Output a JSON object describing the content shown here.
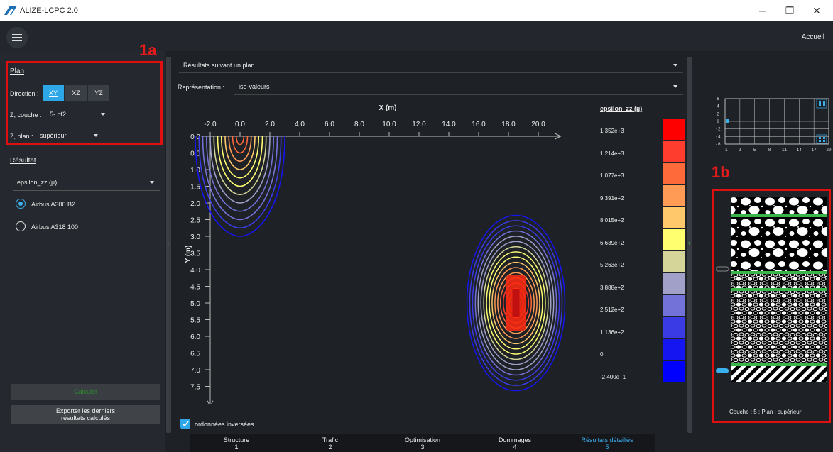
{
  "window": {
    "title": "ALIZE-LCPC 2.0",
    "minimize": "─",
    "restore": "❐",
    "close": "✕"
  },
  "appbar": {
    "home": "Accueil"
  },
  "annotations": {
    "a": "1a",
    "b": "1b"
  },
  "plan": {
    "heading": "Plan",
    "direction_label": "Direction :",
    "directions": [
      "XY",
      "XZ",
      "YZ"
    ],
    "active_direction": "XY",
    "zlayer_label": "Z, couche :",
    "zlayer_value": "5- pf2",
    "zplane_label": "Z, plan :",
    "zplane_value": "supérieur"
  },
  "result": {
    "heading": "Résultat",
    "quantity": "epsilon_zz (µ)",
    "loads": [
      "Airbus A300 B2",
      "Airbus A318 100"
    ],
    "selected_load": "Airbus A300 B2"
  },
  "buttons": {
    "calculate": "Calculer",
    "export_line1": "Exporter les derniers",
    "export_line2": "résultats calculés"
  },
  "center": {
    "mode": "Résultats suivant un plan",
    "representation_label": "Représentation :",
    "representation_value": "iso-valeurs",
    "inverted_label": "ordonnées inversées"
  },
  "chart_data": {
    "type": "heatmap",
    "title": "",
    "xlabel": "X (m)",
    "ylabel": "Y (m)",
    "xticks": [
      "-2.0",
      "0.0",
      "2.0",
      "4.0",
      "6.0",
      "8.0",
      "10.0",
      "12.0",
      "14.0",
      "16.0",
      "18.0",
      "20.0"
    ],
    "yticks": [
      "0.0",
      "0.5",
      "1.0",
      "1.5",
      "2.0",
      "2.5",
      "3.0",
      "3.5",
      "4.0",
      "4.5",
      "5.0",
      "5.5",
      "6.0",
      "6.5",
      "7.0",
      "7.5"
    ],
    "xlim": [
      -3,
      22
    ],
    "ylim": [
      0,
      7.5
    ],
    "y_inverted": true,
    "legend_title": "epsilon_zz (µ)",
    "legend_values": [
      "1.352e+3",
      "1.214e+3",
      "1.077e+3",
      "9.391e+2",
      "8.015e+2",
      "6.639e+2",
      "5.263e+2",
      "3.888e+2",
      "2.512e+2",
      "1.136e+2",
      "0",
      "-2.400e+1"
    ],
    "legend_colors": [
      "#ff0000",
      "#ff3d2e",
      "#ff6a3a",
      "#ff9b55",
      "#ffc86a",
      "#ffff70",
      "#d5d59a",
      "#a0a0c8",
      "#7272d8",
      "#3b3be6",
      "#1515f2",
      "#0000ff"
    ],
    "hotspots": [
      {
        "x": 0.0,
        "y_top": 0.0,
        "y_bottom": 3.0,
        "width": 6.0,
        "peak": "high"
      },
      {
        "x": 18.5,
        "y_top": 2.5,
        "y_bottom": 7.5,
        "width": 6.0,
        "peak": "max"
      }
    ]
  },
  "minigrid": {
    "xticks": [
      "-1",
      "2",
      "5",
      "8",
      "11",
      "14",
      "17",
      "20"
    ],
    "yticks": [
      "6",
      "4",
      "2",
      "0",
      "-2",
      "-4",
      "-6"
    ]
  },
  "structure": {
    "caption": "Couche : 5 ; Plan : supérieur"
  },
  "tabs": [
    {
      "label": "Structure",
      "num": "1"
    },
    {
      "label": "Trafic",
      "num": "2"
    },
    {
      "label": "Optimisation",
      "num": "3"
    },
    {
      "label": "Dommages",
      "num": "4"
    },
    {
      "label": "Résultats détaillés",
      "num": "5"
    }
  ],
  "colors": {
    "accent": "#2ea7e8",
    "annotation": "#e01010",
    "background": "#1e2126"
  }
}
